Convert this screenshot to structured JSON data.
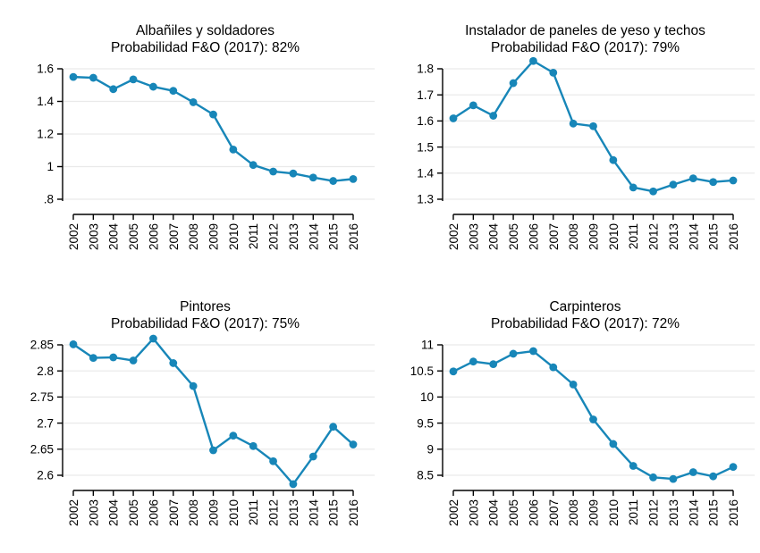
{
  "page": {
    "background": "#ffffff"
  },
  "colors": {
    "series": "#1786b8",
    "grid": "#e9e9e9",
    "axis": "#000000",
    "text": "#000000"
  },
  "chart_data": [
    {
      "type": "line",
      "title": "Albañiles y soldadores",
      "subtitle": "Probabilidad F&O (2017): 82%",
      "x": [
        "2002",
        "2003",
        "2004",
        "2005",
        "2006",
        "2007",
        "2008",
        "2009",
        "2010",
        "2011",
        "2012",
        "2013",
        "2014",
        "2015",
        "2016"
      ],
      "values": [
        1.55,
        1.545,
        1.475,
        1.535,
        1.49,
        1.465,
        1.395,
        1.32,
        1.105,
        1.01,
        0.97,
        0.958,
        0.933,
        0.912,
        0.924
      ],
      "ylim": [
        0.8,
        1.6
      ],
      "yticks": [
        {
          "v": 0.8,
          "label": ".8"
        },
        {
          "v": 1.0,
          "label": "1"
        },
        {
          "v": 1.2,
          "label": "1.2"
        },
        {
          "v": 1.4,
          "label": "1.4"
        },
        {
          "v": 1.6,
          "label": "1.6"
        }
      ],
      "xlabel": "",
      "ylabel": "",
      "grid": true,
      "legend": "none",
      "marker": "circle"
    },
    {
      "type": "line",
      "title": "Instalador de paneles de yeso y techos",
      "subtitle": "Probabilidad F&O (2017): 79%",
      "x": [
        "2002",
        "2003",
        "2004",
        "2005",
        "2006",
        "2007",
        "2008",
        "2009",
        "2010",
        "2011",
        "2012",
        "2013",
        "2014",
        "2015",
        "2016"
      ],
      "values": [
        1.61,
        1.66,
        1.62,
        1.745,
        1.83,
        1.785,
        1.59,
        1.58,
        1.45,
        1.345,
        1.33,
        1.356,
        1.38,
        1.366,
        1.372
      ],
      "ylim": [
        1.3,
        1.8
      ],
      "yticks": [
        {
          "v": 1.3,
          "label": "1.3"
        },
        {
          "v": 1.4,
          "label": "1.4"
        },
        {
          "v": 1.5,
          "label": "1.5"
        },
        {
          "v": 1.6,
          "label": "1.6"
        },
        {
          "v": 1.7,
          "label": "1.7"
        },
        {
          "v": 1.8,
          "label": "1.8"
        }
      ],
      "xlabel": "",
      "ylabel": "",
      "grid": true,
      "legend": "none",
      "marker": "circle"
    },
    {
      "type": "line",
      "title": "Pintores",
      "subtitle": "Probabilidad F&O (2017): 75%",
      "x": [
        "2002",
        "2003",
        "2004",
        "2005",
        "2006",
        "2007",
        "2008",
        "2009",
        "2010",
        "2011",
        "2012",
        "2013",
        "2014",
        "2015",
        "2016"
      ],
      "values": [
        2.851,
        2.825,
        2.826,
        2.82,
        2.862,
        2.815,
        2.771,
        2.648,
        2.676,
        2.656,
        2.627,
        2.583,
        2.636,
        2.693,
        2.659
      ],
      "ylim": [
        2.6,
        2.85
      ],
      "yticks": [
        {
          "v": 2.6,
          "label": "2.6"
        },
        {
          "v": 2.65,
          "label": "2.65"
        },
        {
          "v": 2.7,
          "label": "2.7"
        },
        {
          "v": 2.75,
          "label": "2.75"
        },
        {
          "v": 2.8,
          "label": "2.8"
        },
        {
          "v": 2.85,
          "label": "2.85"
        }
      ],
      "xlabel": "",
      "ylabel": "",
      "grid": true,
      "legend": "none",
      "marker": "circle"
    },
    {
      "type": "line",
      "title": "Carpinteros",
      "subtitle": "Probabilidad F&O (2017): 72%",
      "x": [
        "2002",
        "2003",
        "2004",
        "2005",
        "2006",
        "2007",
        "2008",
        "2009",
        "2010",
        "2011",
        "2012",
        "2013",
        "2014",
        "2015",
        "2016"
      ],
      "values": [
        10.49,
        10.68,
        10.63,
        10.83,
        10.88,
        10.57,
        10.24,
        9.57,
        9.1,
        8.68,
        8.46,
        8.43,
        8.56,
        8.48,
        8.66
      ],
      "ylim": [
        8.5,
        11
      ],
      "yticks": [
        {
          "v": 8.5,
          "label": "8.5"
        },
        {
          "v": 9.0,
          "label": "9"
        },
        {
          "v": 9.5,
          "label": "9.5"
        },
        {
          "v": 10.0,
          "label": "10"
        },
        {
          "v": 10.5,
          "label": "10.5"
        },
        {
          "v": 11.0,
          "label": "11"
        }
      ],
      "xlabel": "",
      "ylabel": "",
      "grid": true,
      "legend": "none",
      "marker": "circle"
    }
  ]
}
